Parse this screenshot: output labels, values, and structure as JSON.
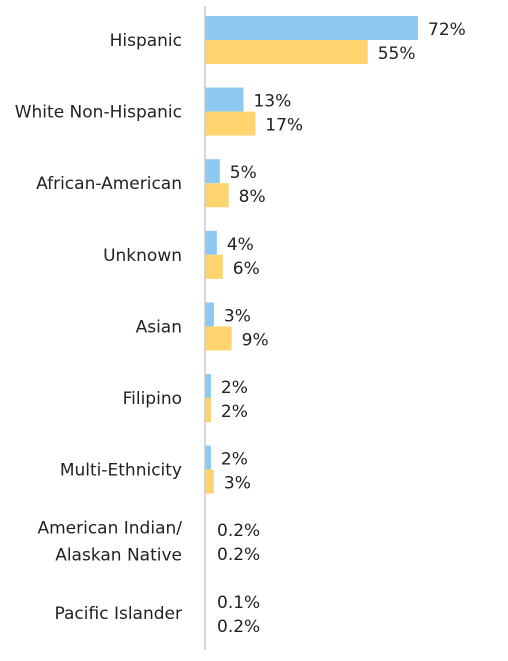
{
  "colors": {
    "series_a": "#8DC8F0",
    "series_b": "#FFD46E",
    "axis": "#c8c8c8",
    "text": "#222222"
  },
  "chart_data": {
    "type": "bar",
    "orientation": "horizontal",
    "categories": [
      "Hispanic",
      "White Non-Hispanic",
      "African-American",
      "Unknown",
      "Asian",
      "Filipino",
      "Multi-Ethnicity",
      "American Indian/ Alaskan Native",
      "Pacific Islander"
    ],
    "category_lines": [
      [
        "Hispanic"
      ],
      [
        "White Non-Hispanic"
      ],
      [
        "African-American"
      ],
      [
        "Unknown"
      ],
      [
        "Asian"
      ],
      [
        "Filipino"
      ],
      [
        "Multi-Ethnicity"
      ],
      [
        "American Indian/",
        "Alaskan Native"
      ],
      [
        "Pacific Islander"
      ]
    ],
    "series": [
      {
        "values": [
          72,
          13,
          5,
          4,
          3,
          2,
          2,
          0.2,
          0.1
        ],
        "labels": [
          "72%",
          "13%",
          "5%",
          "4%",
          "3%",
          "2%",
          "2%",
          "0.2%",
          "0.1%"
        ]
      },
      {
        "values": [
          55,
          17,
          8,
          6,
          9,
          2,
          3,
          0.2,
          0.2
        ],
        "labels": [
          "55%",
          "17%",
          "8%",
          "6%",
          "9%",
          "2%",
          "3%",
          "0.2%",
          "0.2%"
        ]
      }
    ],
    "xlim": [
      0,
      72
    ],
    "grid": false,
    "legend": "none"
  }
}
